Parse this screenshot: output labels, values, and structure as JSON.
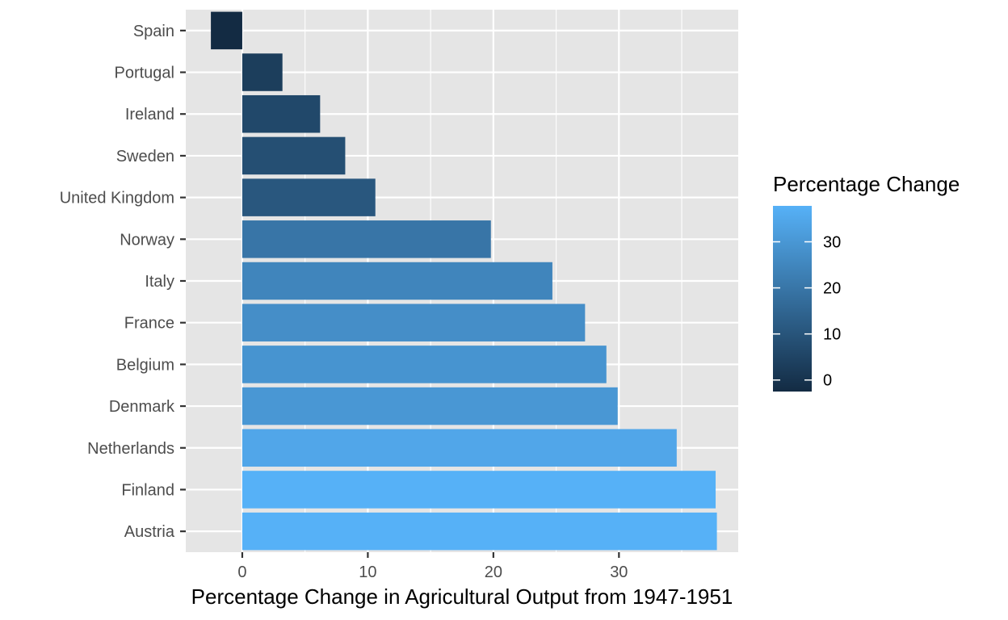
{
  "chart_data": {
    "type": "bar",
    "orientation": "horizontal",
    "title": "",
    "xlabel": "Percentage Change in Agricultural Output from 1947-1951",
    "ylabel": "",
    "xlim": [
      -4.5,
      39.5
    ],
    "x_ticks": [
      0,
      10,
      20,
      30
    ],
    "grid": true,
    "categories": [
      "Spain",
      "Portugal",
      "Ireland",
      "Sweden",
      "United Kingdom",
      "Norway",
      "Italy",
      "France",
      "Belgium",
      "Denmark",
      "Netherlands",
      "Finland",
      "Austria"
    ],
    "values": [
      -2.5,
      3.2,
      6.2,
      8.2,
      10.6,
      19.8,
      24.7,
      27.3,
      29.0,
      29.9,
      34.6,
      37.7,
      37.8
    ],
    "colorbar": {
      "title": "Percentage Change",
      "ticks": [
        0,
        10,
        20,
        30
      ],
      "range": [
        -2.5,
        37.8
      ],
      "low_color": "#132B43",
      "high_color": "#56B1F7",
      "placement": "right"
    },
    "colors": {
      "panel_background": "#E5E5E5",
      "grid_line": "#FFFFFF"
    }
  }
}
